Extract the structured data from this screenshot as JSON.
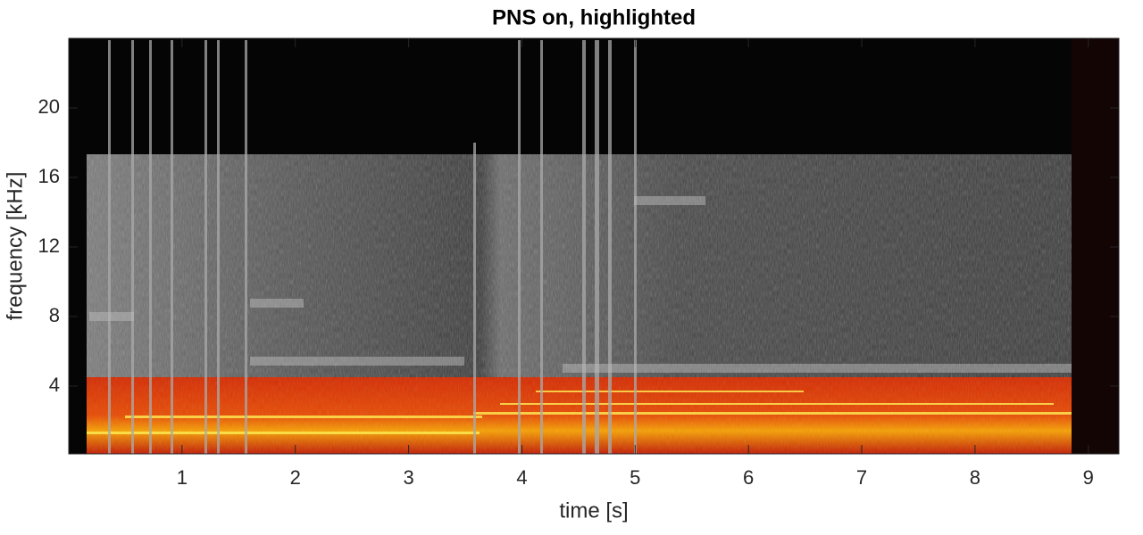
{
  "chart_data": {
    "type": "spectrogram",
    "title": "PNS on, highlighted",
    "xlabel": "time [s]",
    "ylabel": "frequency [kHz]",
    "xlim": [
      0,
      9.27
    ],
    "ylim": [
      0.1,
      24
    ],
    "xticks": [
      1,
      2,
      3,
      4,
      5,
      6,
      7,
      8,
      9
    ],
    "yticks": [
      4,
      8,
      12,
      16,
      20
    ]
  }
}
